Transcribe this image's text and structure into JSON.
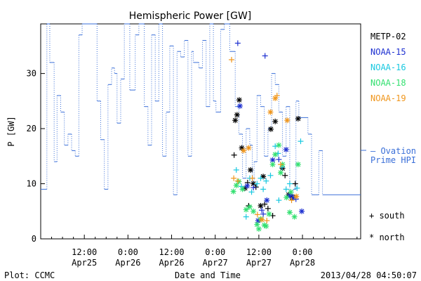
{
  "chart_data": {
    "type": "line+scatter",
    "title": "Hemispheric Power [GW]",
    "ylabel": "P [GW]",
    "xlabel": "Date and Time",
    "ylim": [
      0,
      39
    ],
    "xlim_hours": [
      0,
      88
    ],
    "yticks": [
      0,
      10,
      20,
      30
    ],
    "xticks": [
      {
        "hour": 12,
        "l1": "12:00",
        "l2": "Apr25"
      },
      {
        "hour": 24,
        "l1": "0:00",
        "l2": "Apr26"
      },
      {
        "hour": 36,
        "l1": "12:00",
        "l2": "Apr26"
      },
      {
        "hour": 48,
        "l1": "0:00",
        "l2": "Apr27"
      },
      {
        "hour": 60,
        "l1": "12:00",
        "l2": "Apr27"
      },
      {
        "hour": 72,
        "l1": "0:00",
        "l2": "Apr28"
      }
    ],
    "x_origin_note": "x values are hours after Apr 24 0:00 UT",
    "ovation": {
      "name": "Ovation Prime HPI",
      "color": "#3a6fd8",
      "steps": [
        [
          0,
          9
        ],
        [
          1.7,
          39
        ],
        [
          2.5,
          32
        ],
        [
          3.7,
          14
        ],
        [
          4.5,
          26
        ],
        [
          5.5,
          23
        ],
        [
          6.5,
          17
        ],
        [
          7.5,
          19
        ],
        [
          8.5,
          16
        ],
        [
          9.5,
          15
        ],
        [
          10.5,
          37
        ],
        [
          11.4,
          39
        ],
        [
          15.5,
          25
        ],
        [
          16.5,
          18
        ],
        [
          17.5,
          9
        ],
        [
          18.5,
          28
        ],
        [
          19.5,
          31
        ],
        [
          20.3,
          30
        ],
        [
          21,
          21
        ],
        [
          22,
          29
        ],
        [
          23,
          39
        ],
        [
          24.5,
          27
        ],
        [
          26,
          37
        ],
        [
          27,
          39
        ],
        [
          28.5,
          24
        ],
        [
          29.5,
          17
        ],
        [
          30.5,
          37
        ],
        [
          31.5,
          25
        ],
        [
          32.5,
          39
        ],
        [
          33.5,
          15
        ],
        [
          34.5,
          23
        ],
        [
          35.5,
          35
        ],
        [
          36.5,
          8
        ],
        [
          37.5,
          34
        ],
        [
          38.5,
          33
        ],
        [
          39.5,
          36
        ],
        [
          40.5,
          15
        ],
        [
          41.5,
          34
        ],
        [
          42,
          32
        ],
        [
          43.5,
          31
        ],
        [
          44.5,
          36
        ],
        [
          45.5,
          24
        ],
        [
          46.5,
          39
        ],
        [
          47.5,
          25
        ],
        [
          48.2,
          23
        ],
        [
          49.5,
          38
        ],
        [
          50.5,
          39
        ],
        [
          52,
          34
        ],
        [
          53.5,
          24
        ],
        [
          54.5,
          19
        ],
        [
          55.5,
          11
        ],
        [
          56.5,
          20
        ],
        [
          57.5,
          17
        ],
        [
          58.2,
          10
        ],
        [
          58.7,
          14
        ],
        [
          59.5,
          26
        ],
        [
          60.5,
          24
        ],
        [
          61.5,
          15
        ],
        [
          62.5,
          20
        ],
        [
          63.5,
          30
        ],
        [
          64.5,
          28
        ],
        [
          65.5,
          23
        ],
        [
          66.5,
          15
        ],
        [
          67.5,
          24
        ],
        [
          68.5,
          8
        ],
        [
          69.5,
          9
        ],
        [
          70.2,
          25
        ],
        [
          71,
          22
        ],
        [
          72,
          22
        ],
        [
          73.5,
          19
        ],
        [
          74.5,
          8
        ],
        [
          75.5,
          8
        ],
        [
          76.5,
          16
        ],
        [
          77.5,
          8
        ]
      ]
    },
    "series": [
      {
        "name": "METP-02",
        "color": "#000000",
        "points": [
          [
            53.2,
            15.2,
            "s"
          ],
          [
            53.5,
            21.5,
            "n"
          ],
          [
            54,
            22.5,
            "n"
          ],
          [
            54.6,
            25.2,
            "n"
          ],
          [
            55.3,
            16.5,
            "n"
          ],
          [
            56.2,
            9.2,
            "n"
          ],
          [
            56.9,
            10.2,
            "s"
          ],
          [
            57.7,
            12.5,
            "n"
          ],
          [
            57.2,
            6,
            "s"
          ],
          [
            58.5,
            10,
            "n"
          ],
          [
            59.2,
            9.4,
            "s"
          ],
          [
            60.5,
            6,
            "n"
          ],
          [
            61.2,
            11.3,
            "n"
          ],
          [
            61.6,
            6.3,
            "s"
          ],
          [
            62.5,
            5.5,
            "s"
          ],
          [
            63.3,
            19.9,
            "n"
          ],
          [
            63.8,
            4.2,
            "s"
          ],
          [
            64.5,
            21.3,
            "n"
          ],
          [
            66.5,
            12.8,
            "n"
          ],
          [
            67.2,
            11.5,
            "s"
          ],
          [
            68.2,
            8,
            "n"
          ],
          [
            69.2,
            7.5,
            "n"
          ],
          [
            70.8,
            21.8,
            "n"
          ],
          [
            70,
            10,
            "s"
          ]
        ]
      },
      {
        "name": "NOAA-15",
        "color": "#1c2fd0",
        "points": [
          [
            54.2,
            35.5,
            "s"
          ],
          [
            54.8,
            24.1,
            "n"
          ],
          [
            56.8,
            9.6,
            "n"
          ],
          [
            58.5,
            9.3,
            "s"
          ],
          [
            59.8,
            3.3,
            "n"
          ],
          [
            60.8,
            5.2,
            "s"
          ],
          [
            61.7,
            33.2,
            "s"
          ],
          [
            62.2,
            7,
            "n"
          ],
          [
            63.8,
            14.3,
            "n"
          ],
          [
            65.5,
            14.4,
            "s"
          ],
          [
            67.5,
            16.2,
            "n"
          ],
          [
            68.5,
            7.8,
            "n"
          ],
          [
            69.5,
            7.5,
            "n"
          ],
          [
            70.2,
            7.2,
            "s"
          ],
          [
            71.8,
            5,
            "n"
          ],
          [
            61.2,
            4.5,
            "s"
          ]
        ]
      },
      {
        "name": "NOAA-16",
        "color": "#18c8e0",
        "points": [
          [
            53.8,
            12.5,
            "s"
          ],
          [
            55.2,
            9.5,
            "s"
          ],
          [
            56.5,
            4,
            "s"
          ],
          [
            57.5,
            11,
            "s"
          ],
          [
            58,
            8.5,
            "s"
          ],
          [
            59.5,
            10,
            "s"
          ],
          [
            60.5,
            11,
            "s"
          ],
          [
            61.2,
            9,
            "s"
          ],
          [
            63.2,
            11.5,
            "s"
          ],
          [
            64.5,
            16.8,
            "s"
          ],
          [
            65.3,
            15.5,
            "s"
          ],
          [
            66.4,
            13,
            "s"
          ],
          [
            67.5,
            9,
            "s"
          ],
          [
            68.5,
            10,
            "s"
          ],
          [
            70.5,
            9.2,
            "s"
          ],
          [
            71.5,
            17.7,
            "s"
          ],
          [
            65.5,
            7,
            "s"
          ],
          [
            62,
            10.5,
            "s"
          ]
        ]
      },
      {
        "name": "NOAA-18",
        "color": "#33e070",
        "points": [
          [
            53,
            8.6,
            "n"
          ],
          [
            53.8,
            9.7,
            "n"
          ],
          [
            54.5,
            10.4,
            "n"
          ],
          [
            55.5,
            9,
            "n"
          ],
          [
            56.5,
            5.3,
            "n"
          ],
          [
            57.5,
            5.8,
            "n"
          ],
          [
            58.5,
            5,
            "n"
          ],
          [
            59.5,
            2.6,
            "n"
          ],
          [
            60,
            1.8,
            "n"
          ],
          [
            60.5,
            3.6,
            "n"
          ],
          [
            61.5,
            2.5,
            "n"
          ],
          [
            62.8,
            4.5,
            "n"
          ],
          [
            63.8,
            13.5,
            "n"
          ],
          [
            64.5,
            15.3,
            "n"
          ],
          [
            65.5,
            17,
            "n"
          ],
          [
            66.5,
            13.5,
            "n"
          ],
          [
            67.6,
            7.5,
            "n"
          ],
          [
            68.5,
            4.8,
            "n"
          ],
          [
            69.8,
            4,
            "n"
          ],
          [
            70.8,
            13.5,
            "n"
          ],
          [
            62,
            2.3,
            "n"
          ],
          [
            66,
            12,
            "n"
          ],
          [
            68.8,
            8.5,
            "n"
          ]
        ]
      },
      {
        "name": "NOAA-19",
        "color": "#f0961c",
        "points": [
          [
            52.5,
            32.5,
            "s"
          ],
          [
            53.1,
            11,
            "s"
          ],
          [
            54.2,
            10.5,
            "s"
          ],
          [
            55.8,
            16,
            "n"
          ],
          [
            57.2,
            16.5,
            "n"
          ],
          [
            58.2,
            11,
            "s"
          ],
          [
            59.6,
            4.4,
            "s"
          ],
          [
            60.8,
            3.5,
            "n"
          ],
          [
            62.2,
            3.3,
            "s"
          ],
          [
            63.2,
            23,
            "n"
          ],
          [
            64.5,
            25.5,
            "n"
          ],
          [
            65,
            26,
            "s"
          ],
          [
            67.8,
            21.5,
            "n"
          ],
          [
            69,
            7,
            "s"
          ],
          [
            70.3,
            7.7,
            "n"
          ],
          [
            66,
            13.5,
            "s"
          ]
        ]
      }
    ],
    "legend_key": {
      "south": "+ south",
      "north": "* north"
    }
  },
  "footer": {
    "plot_label": "Plot: CCMC",
    "timestamp": "2013/04/28 04:50:07"
  },
  "legend_ovation": {
    "line1": "— Ovation",
    "line2": "Prime HPI"
  }
}
